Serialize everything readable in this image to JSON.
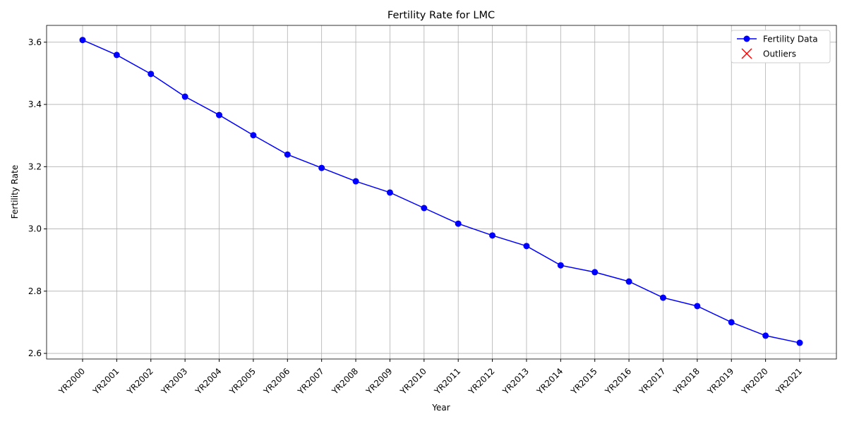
{
  "chart_data": {
    "type": "line",
    "title": "Fertility Rate for LMC",
    "x_label": "Year",
    "y_label": "Fertility Rate",
    "categories": [
      "YR2000",
      "YR2001",
      "YR2002",
      "YR2003",
      "YR2004",
      "YR2005",
      "YR2006",
      "YR2007",
      "YR2008",
      "YR2009",
      "YR2010",
      "YR2011",
      "YR2012",
      "YR2013",
      "YR2014",
      "YR2015",
      "YR2016",
      "YR2017",
      "YR2018",
      "YR2019",
      "YR2020",
      "YR2021"
    ],
    "series": [
      {
        "name": "Fertility Data",
        "color": "#0000ff",
        "marker": "circle",
        "values": [
          3.607,
          3.559,
          3.498,
          3.425,
          3.366,
          3.301,
          3.239,
          3.196,
          3.153,
          3.117,
          3.067,
          3.017,
          2.979,
          2.945,
          2.883,
          2.861,
          2.831,
          2.779,
          2.752,
          2.7,
          2.657,
          2.634
        ]
      },
      {
        "name": "Outliers",
        "color": "#ff0000",
        "marker": "x",
        "values": [
          null,
          null,
          null,
          null,
          null,
          null,
          null,
          null,
          null,
          null,
          null,
          null,
          null,
          null,
          null,
          null,
          null,
          null,
          null,
          null,
          null,
          null
        ]
      }
    ],
    "ylim": [
      2.582,
      3.654
    ],
    "yticks": [
      2.6,
      2.8,
      {
        "value": 3.0,
        "label": "3.0"
      },
      3.2,
      3.4,
      3.6
    ],
    "grid": true,
    "legend": "upper right"
  }
}
